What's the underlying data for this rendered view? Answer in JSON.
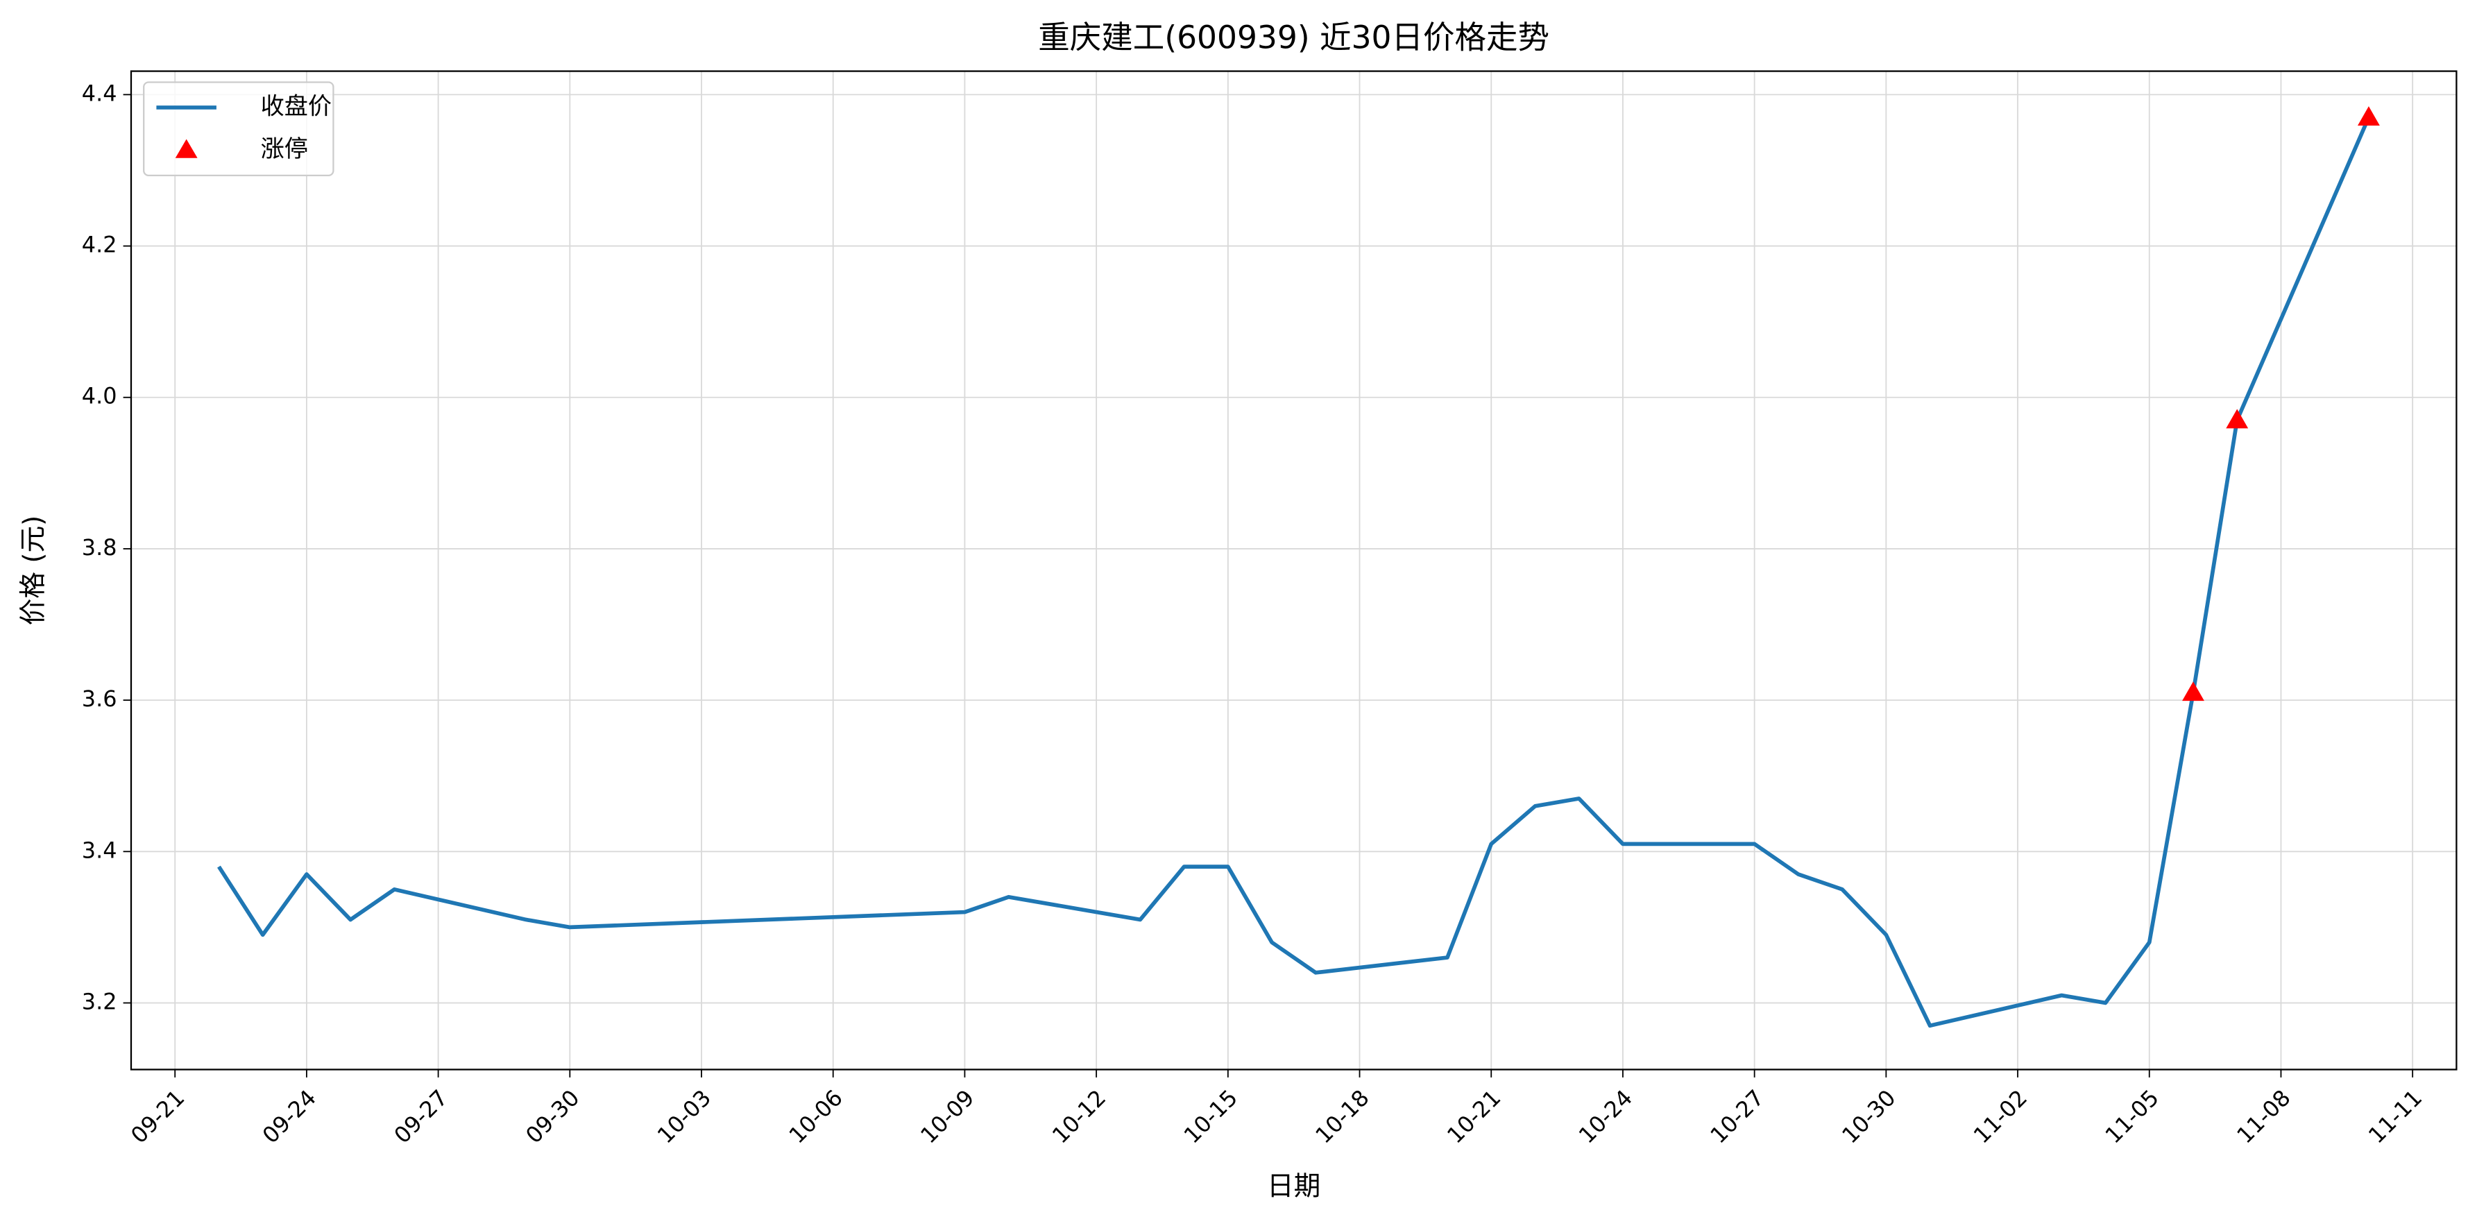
{
  "chart_data": {
    "type": "line",
    "title": "重庆建工(600939) 近30日价格走势",
    "x_label": "日期",
    "y_label": "价格 (元)",
    "x": [
      "09-22",
      "09-23",
      "09-24",
      "09-25",
      "09-26",
      "09-29",
      "09-30",
      "10-09",
      "10-10",
      "10-13",
      "10-14",
      "10-15",
      "10-16",
      "10-17",
      "10-20",
      "10-21",
      "10-22",
      "10-23",
      "10-24",
      "10-27",
      "10-28",
      "10-29",
      "10-30",
      "10-31",
      "11-03",
      "11-04",
      "11-05",
      "11-06",
      "11-07",
      "11-10"
    ],
    "series": [
      {
        "name": "收盘价",
        "type": "line",
        "color": "#1f77b4",
        "values": [
          3.38,
          3.29,
          3.37,
          3.31,
          3.35,
          3.31,
          3.3,
          3.32,
          3.34,
          3.31,
          3.38,
          3.38,
          3.28,
          3.24,
          3.26,
          3.41,
          3.46,
          3.47,
          3.41,
          3.41,
          3.37,
          3.35,
          3.29,
          3.17,
          3.21,
          3.2,
          3.28,
          3.61,
          3.97,
          4.37
        ]
      },
      {
        "name": "涨停",
        "type": "scatter",
        "color": "#ff0000",
        "marker": "triangle",
        "x": [
          "11-06",
          "11-07",
          "11-10"
        ],
        "values": [
          3.61,
          3.97,
          4.37
        ]
      }
    ],
    "xlim": [
      "09-20",
      "11-12"
    ],
    "xticks": [
      "09-21",
      "09-24",
      "09-27",
      "09-30",
      "10-03",
      "10-06",
      "10-09",
      "10-12",
      "10-15",
      "10-18",
      "10-21",
      "10-24",
      "10-27",
      "10-30",
      "11-02",
      "11-05",
      "11-08",
      "11-11"
    ],
    "ylim": [
      3.112,
      4.431
    ],
    "yticks": [
      3.2,
      3.4,
      3.6,
      3.8,
      {
        "value": 4,
        "label": "4.0"
      },
      4.2,
      4.4
    ],
    "grid": true,
    "legend": "upper left"
  }
}
